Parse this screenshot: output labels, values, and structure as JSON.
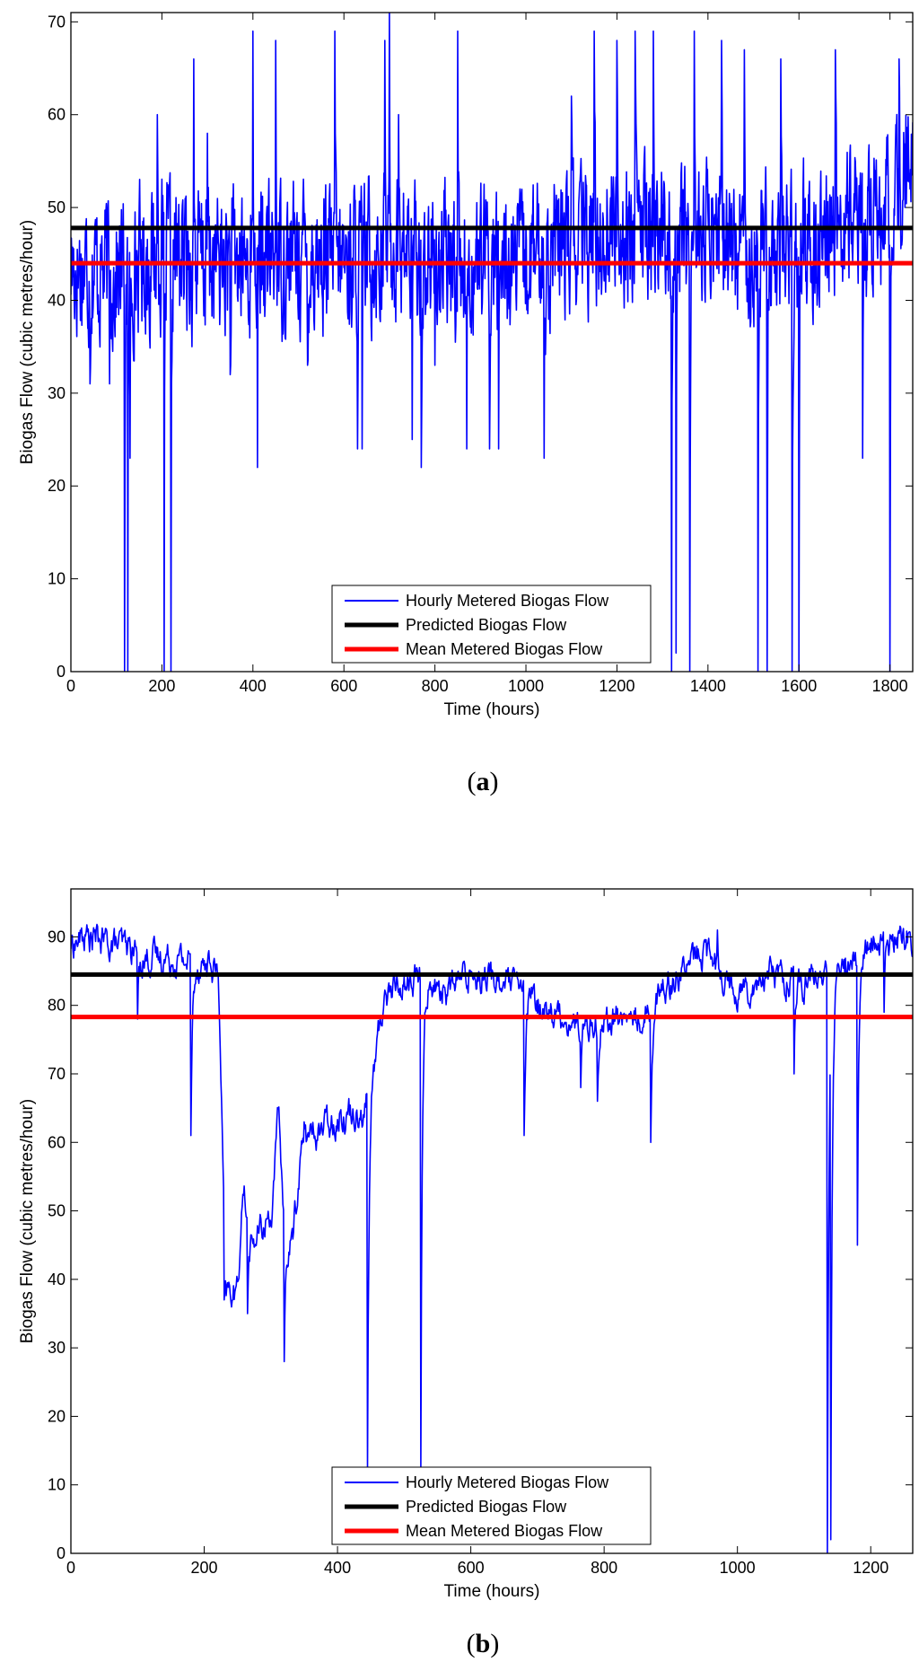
{
  "chart_data": [
    {
      "type": "line",
      "panel_label_open": "(",
      "panel_label": "a",
      "panel_label_close": ")",
      "xlabel": "Time (hours)",
      "ylabel": "Biogas Flow (cubic metres/hour)",
      "xlim": [
        0,
        1850
      ],
      "ylim": [
        0,
        71
      ],
      "xticks": [
        0,
        200,
        400,
        600,
        800,
        1000,
        1200,
        1400,
        1600,
        1800
      ],
      "yticks": [
        0,
        10,
        20,
        30,
        40,
        50,
        60,
        70
      ],
      "grid": false,
      "legend_position": "bottom-center",
      "series": [
        {
          "name": "Hourly Metered Biogas Flow",
          "color": "#0000ff",
          "style": "noisy",
          "baseline": [
            [
              0,
              44
            ],
            [
              100,
              43
            ],
            [
              200,
              45
            ],
            [
              300,
              44
            ],
            [
              400,
              44
            ],
            [
              500,
              45
            ],
            [
              600,
              44
            ],
            [
              700,
              46
            ],
            [
              800,
              44
            ],
            [
              900,
              44
            ],
            [
              1000,
              44
            ],
            [
              1100,
              46
            ],
            [
              1200,
              48
            ],
            [
              1300,
              47
            ],
            [
              1400,
              47
            ],
            [
              1500,
              46
            ],
            [
              1600,
              46
            ],
            [
              1700,
              48
            ],
            [
              1800,
              49
            ],
            [
              1850,
              55
            ]
          ],
          "amplitude": 12,
          "clip": [
            22,
            71
          ],
          "spikes": [
            [
              42,
              31
            ],
            [
              85,
              31
            ],
            [
              118,
              0
            ],
            [
              125,
              0
            ],
            [
              130,
              23
            ],
            [
              190,
              60
            ],
            [
              205,
              0
            ],
            [
              220,
              0
            ],
            [
              270,
              66
            ],
            [
              300,
              58
            ],
            [
              350,
              32
            ],
            [
              400,
              69
            ],
            [
              410,
              22
            ],
            [
              450,
              68
            ],
            [
              520,
              33
            ],
            [
              580,
              69
            ],
            [
              630,
              24
            ],
            [
              640,
              24
            ],
            [
              690,
              68
            ],
            [
              700,
              71
            ],
            [
              720,
              60
            ],
            [
              750,
              25
            ],
            [
              770,
              22
            ],
            [
              800,
              33
            ],
            [
              850,
              69
            ],
            [
              870,
              24
            ],
            [
              920,
              24
            ],
            [
              930,
              47
            ],
            [
              940,
              24
            ],
            [
              1040,
              23
            ],
            [
              1100,
              62
            ],
            [
              1150,
              69
            ],
            [
              1200,
              68
            ],
            [
              1240,
              69
            ],
            [
              1280,
              69
            ],
            [
              1320,
              0
            ],
            [
              1330,
              2
            ],
            [
              1360,
              0
            ],
            [
              1370,
              69
            ],
            [
              1430,
              68
            ],
            [
              1480,
              67
            ],
            [
              1510,
              0
            ],
            [
              1530,
              0
            ],
            [
              1560,
              66
            ],
            [
              1585,
              0
            ],
            [
              1600,
              0
            ],
            [
              1680,
              67
            ],
            [
              1740,
              23
            ],
            [
              1800,
              0
            ],
            [
              1820,
              66
            ]
          ]
        },
        {
          "name": "Predicted Biogas Flow",
          "color": "#000000",
          "style": "constant",
          "value": 47.8
        },
        {
          "name": "Mean Metered Biogas Flow",
          "color": "#ff0000",
          "style": "constant",
          "value": 44
        }
      ]
    },
    {
      "type": "line",
      "panel_label_open": "(",
      "panel_label": "b",
      "panel_label_close": ")",
      "xlabel": "Time (hours)",
      "ylabel": "Biogas Flow (cubic metres/hour)",
      "xlim": [
        0,
        1263
      ],
      "ylim": [
        0,
        97
      ],
      "xticks": [
        0,
        200,
        400,
        600,
        800,
        1000,
        1200
      ],
      "yticks": [
        0,
        10,
        20,
        30,
        40,
        50,
        60,
        70,
        80,
        90
      ],
      "grid": false,
      "legend_position": "bottom-center",
      "series": [
        {
          "name": "Hourly Metered Biogas Flow",
          "color": "#0000ff",
          "style": "noisy",
          "baseline": [
            [
              0,
              89
            ],
            [
              20,
              90
            ],
            [
              60,
              89
            ],
            [
              100,
              88
            ],
            [
              110,
              87
            ],
            [
              150,
              87
            ],
            [
              200,
              86
            ],
            [
              220,
              85
            ],
            [
              230,
              38
            ],
            [
              250,
              38
            ],
            [
              255,
              55
            ],
            [
              270,
              45
            ],
            [
              300,
              50
            ],
            [
              310,
              65
            ],
            [
              320,
              45
            ],
            [
              330,
              45
            ],
            [
              345,
              60
            ],
            [
              360,
              61
            ],
            [
              400,
              64
            ],
            [
              440,
              65
            ],
            [
              450,
              70
            ],
            [
              470,
              82
            ],
            [
              520,
              84
            ],
            [
              560,
              82
            ],
            [
              600,
              85
            ],
            [
              660,
              83
            ],
            [
              700,
              80
            ],
            [
              760,
              77
            ],
            [
              800,
              78
            ],
            [
              850,
              78
            ],
            [
              900,
              84
            ],
            [
              950,
              88
            ],
            [
              1000,
              82
            ],
            [
              1050,
              85
            ],
            [
              1100,
              83
            ],
            [
              1150,
              85
            ],
            [
              1200,
              89
            ],
            [
              1263,
              90
            ]
          ],
          "amplitude": 5,
          "clip": [
            0,
            97
          ],
          "spikes": [
            [
              100,
              78
            ],
            [
              180,
              61
            ],
            [
              230,
              37
            ],
            [
              265,
              35
            ],
            [
              320,
              28
            ],
            [
              350,
              63
            ],
            [
              445,
              12
            ],
            [
              525,
              12
            ],
            [
              680,
              61
            ],
            [
              765,
              68
            ],
            [
              790,
              66
            ],
            [
              870,
              60
            ],
            [
              970,
              91
            ],
            [
              1085,
              70
            ],
            [
              1135,
              0
            ],
            [
              1140,
              2
            ],
            [
              1180,
              45
            ],
            [
              1220,
              79
            ]
          ]
        },
        {
          "name": "Predicted Biogas Flow",
          "color": "#000000",
          "style": "constant",
          "value": 84.5
        },
        {
          "name": "Mean Metered Biogas Flow",
          "color": "#ff0000",
          "style": "constant",
          "value": 78.3
        }
      ]
    }
  ]
}
